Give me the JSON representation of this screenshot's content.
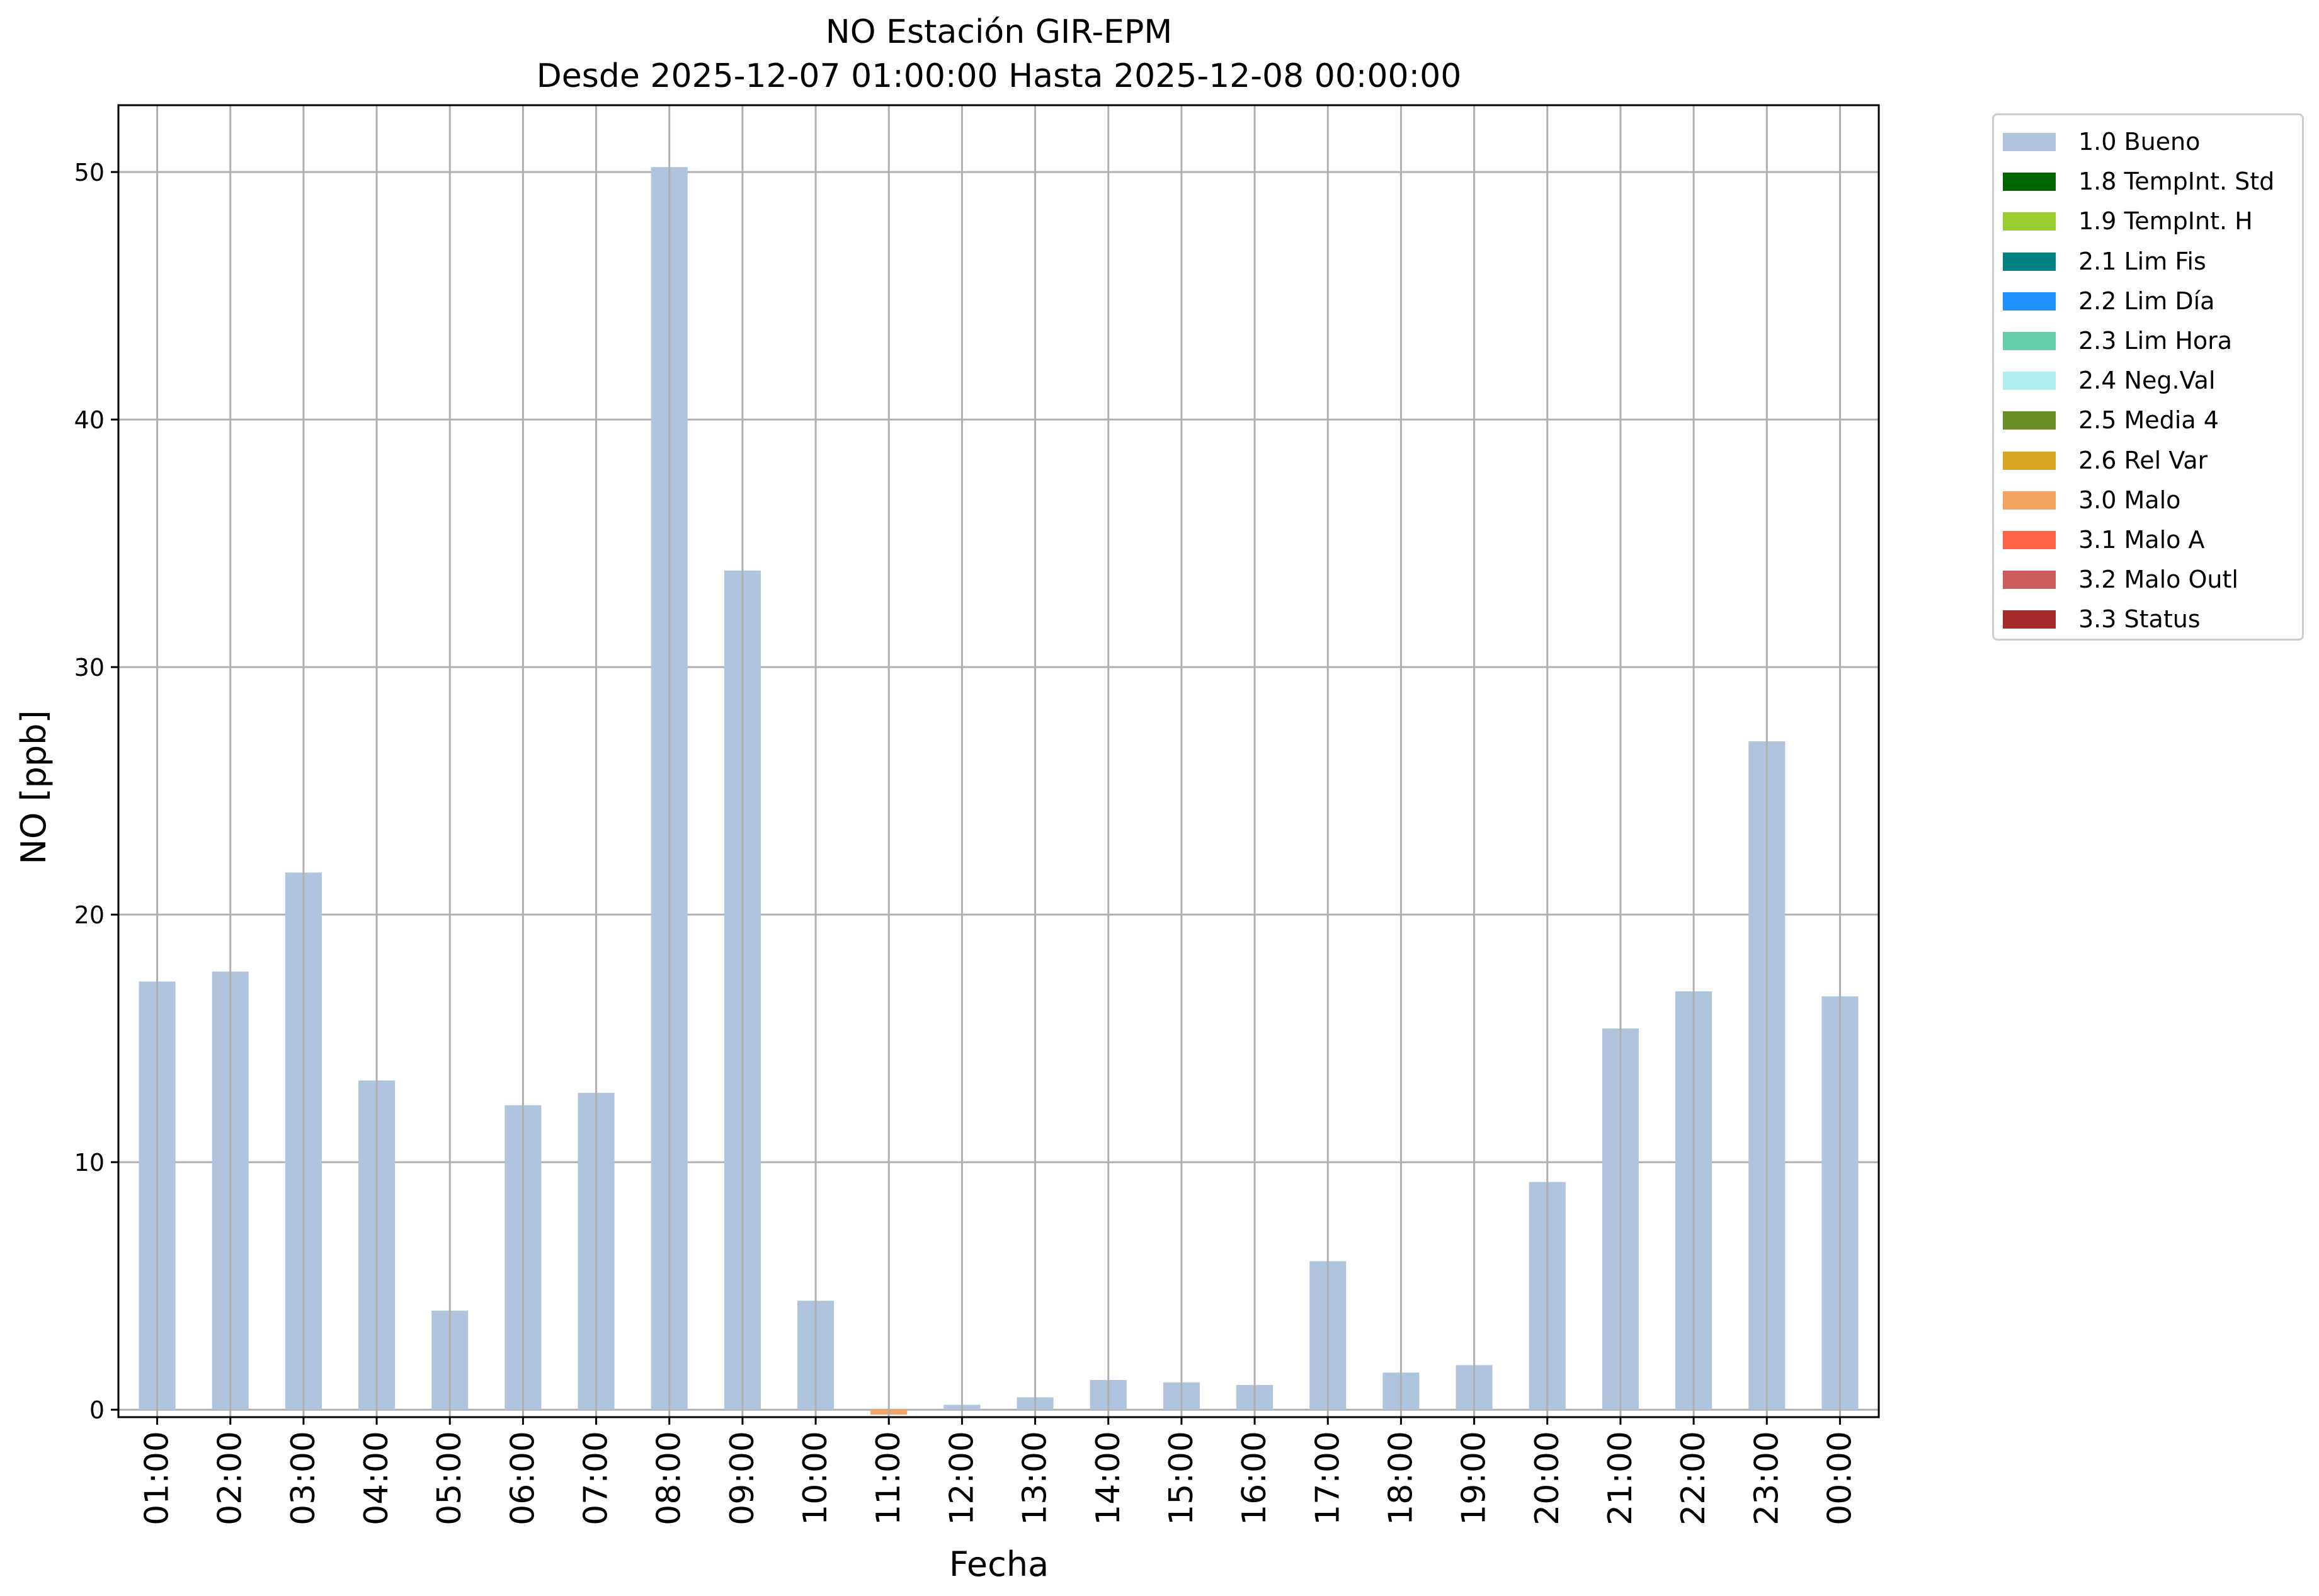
{
  "chart_data": {
    "type": "bar",
    "title": "NO Estación GIR-EPM",
    "subtitle": "Desde 2025-12-07 01:00:00 Hasta 2025-12-08 00:00:00",
    "xlabel": "Fecha",
    "ylabel": "NO [ppb]",
    "ylim": [
      -0.3,
      52.7
    ],
    "yticks": [
      0,
      10,
      20,
      30,
      40,
      50
    ],
    "grid": true,
    "legend_placement": "outside-top-right",
    "categories": [
      "01:00",
      "02:00",
      "03:00",
      "04:00",
      "05:00",
      "06:00",
      "07:00",
      "08:00",
      "09:00",
      "10:00",
      "11:00",
      "12:00",
      "13:00",
      "14:00",
      "15:00",
      "16:00",
      "17:00",
      "18:00",
      "19:00",
      "20:00",
      "21:00",
      "22:00",
      "23:00",
      "00:00"
    ],
    "values": [
      17.3,
      17.7,
      21.7,
      13.3,
      4.0,
      12.3,
      12.8,
      50.2,
      33.9,
      4.4,
      -0.2,
      0.2,
      0.5,
      1.2,
      1.1,
      1.0,
      6.0,
      1.5,
      1.8,
      9.2,
      15.4,
      16.9,
      27.0,
      16.7
    ],
    "flags": [
      "1.0",
      "1.0",
      "1.0",
      "1.0",
      "1.0",
      "1.0",
      "1.0",
      "1.0",
      "1.0",
      "1.0",
      "3.0",
      "1.0",
      "1.0",
      "1.0",
      "1.0",
      "1.0",
      "1.0",
      "1.0",
      "1.0",
      "1.0",
      "1.0",
      "1.0",
      "1.0",
      "1.0"
    ],
    "legend": [
      {
        "code": "1.0",
        "label": "1.0 Bueno",
        "color": "#b0c4de"
      },
      {
        "code": "1.8",
        "label": "1.8 TempInt. Std",
        "color": "#006400"
      },
      {
        "code": "1.9",
        "label": "1.9 TempInt. H",
        "color": "#9acd32"
      },
      {
        "code": "2.1",
        "label": "2.1 Lim Fis",
        "color": "#008080"
      },
      {
        "code": "2.2",
        "label": "2.2 Lim Día",
        "color": "#1e90ff"
      },
      {
        "code": "2.3",
        "label": "2.3 Lim Hora",
        "color": "#66cdaa"
      },
      {
        "code": "2.4",
        "label": "2.4 Neg.Val",
        "color": "#afeeee"
      },
      {
        "code": "2.5",
        "label": "2.5 Media 4",
        "color": "#6b8e23"
      },
      {
        "code": "2.6",
        "label": "2.6 Rel Var",
        "color": "#daa520"
      },
      {
        "code": "3.0",
        "label": "3.0 Malo",
        "color": "#f4a460"
      },
      {
        "code": "3.1",
        "label": "3.1 Malo A",
        "color": "#ff6347"
      },
      {
        "code": "3.2",
        "label": "3.2 Malo Outl",
        "color": "#cd5c5c"
      },
      {
        "code": "3.3",
        "label": "3.3 Status",
        "color": "#a52a2a"
      }
    ]
  }
}
